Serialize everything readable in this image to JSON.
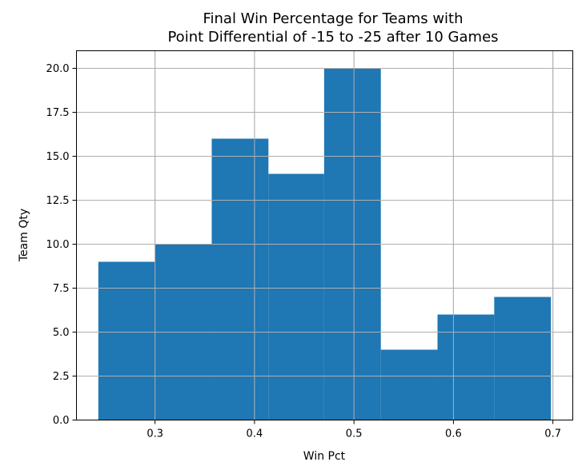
{
  "chart_data": {
    "type": "bar",
    "title_lines": [
      "Final Win Percentage for Teams with",
      "Point Differential of -15 to -25 after 10 Games"
    ],
    "xlabel": "Win Pct",
    "ylabel": "Team Qty",
    "bins": [
      {
        "start": 0.243,
        "end": 0.3,
        "value": 9
      },
      {
        "start": 0.3,
        "end": 0.357,
        "value": 10
      },
      {
        "start": 0.357,
        "end": 0.414,
        "value": 16
      },
      {
        "start": 0.414,
        "end": 0.47,
        "value": 14
      },
      {
        "start": 0.47,
        "end": 0.527,
        "value": 20
      },
      {
        "start": 0.527,
        "end": 0.584,
        "value": 4
      },
      {
        "start": 0.584,
        "end": 0.641,
        "value": 6
      },
      {
        "start": 0.641,
        "end": 0.698,
        "value": 7
      }
    ],
    "xlim": [
      0.221,
      0.72
    ],
    "ylim": [
      0,
      21
    ],
    "xticks": [
      0.3,
      0.4,
      0.5,
      0.6,
      0.7
    ],
    "xtick_labels": [
      "0.3",
      "0.4",
      "0.5",
      "0.6",
      "0.7"
    ],
    "yticks": [
      0,
      2.5,
      5,
      7.5,
      10,
      12.5,
      15,
      17.5,
      20
    ],
    "ytick_labels": [
      "0.0",
      "2.5",
      "5.0",
      "7.5",
      "10.0",
      "12.5",
      "15.0",
      "17.5",
      "20.0"
    ],
    "grid": true,
    "bar_color": "#1f77b4",
    "grid_color": "#b0b0b0"
  }
}
